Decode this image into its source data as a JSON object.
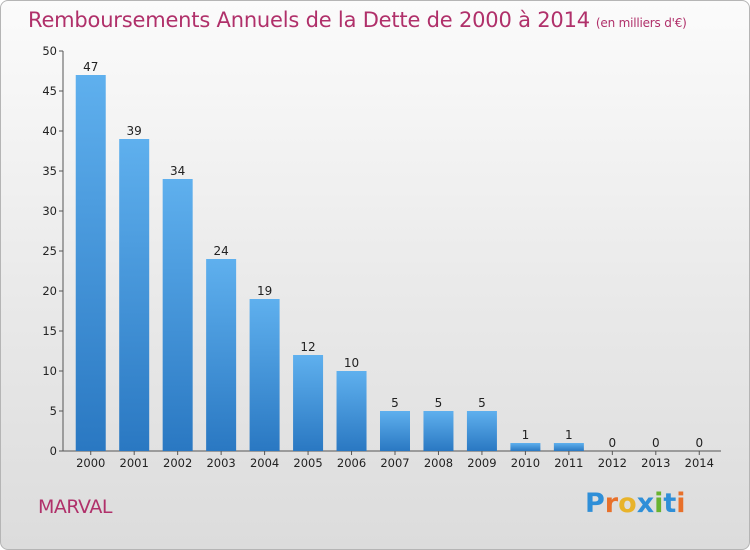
{
  "chart_data": {
    "type": "bar",
    "title": "Remboursements Annuels de la Dette de 2000 à 2014",
    "subtitle": "(en milliers d'€)",
    "categories": [
      "2000",
      "2001",
      "2002",
      "2003",
      "2004",
      "2005",
      "2006",
      "2007",
      "2008",
      "2009",
      "2010",
      "2011",
      "2012",
      "2013",
      "2014"
    ],
    "values": [
      47,
      39,
      34,
      24,
      19,
      12,
      10,
      5,
      5,
      5,
      1,
      1,
      0,
      0,
      0
    ],
    "xlabel": "",
    "ylabel": "",
    "ylim": [
      0,
      50
    ],
    "yticks": [
      0,
      5,
      10,
      15,
      20,
      25,
      30,
      35,
      40,
      45,
      50
    ],
    "grid": false,
    "bar_color": "#3d8fd6"
  },
  "place_name": "MARVAL",
  "logo": {
    "letters": [
      "P",
      "r",
      "o",
      "x",
      "i",
      "t",
      "i"
    ],
    "colors": [
      "#2f8fd8",
      "#e8702a",
      "#e8b32a",
      "#2f8fd8",
      "#69b32f",
      "#2f8fd8",
      "#e8702a"
    ]
  }
}
